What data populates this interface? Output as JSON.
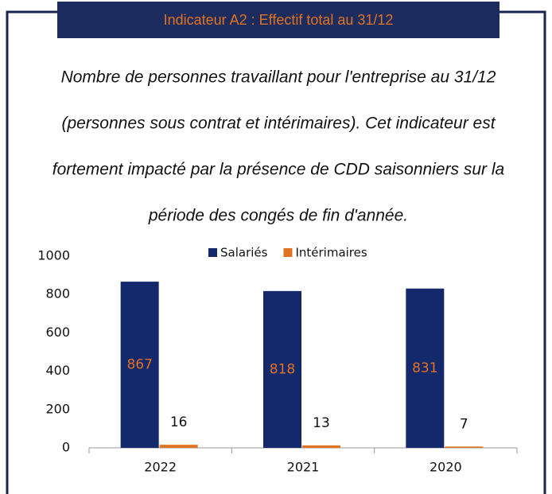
{
  "chart_data": {
    "type": "bar",
    "title": "Indicateur A2 : Effectif total au 31/12",
    "description": [
      "Nombre de personnes travaillant pour l'entreprise au 31/12",
      "(personnes sous contrat et intérimaires).  Cet indicateur est",
      "fortement impacté par la présence de CDD saisonniers sur la",
      "période des congés de fin d'année."
    ],
    "categories": [
      "2022",
      "2021",
      "2020"
    ],
    "series": [
      {
        "name": "Salariés",
        "color": "#13296b",
        "values": [
          867,
          818,
          831
        ]
      },
      {
        "name": "Intérimaires",
        "color": "#e07223",
        "values": [
          16,
          13,
          7
        ]
      }
    ],
    "ylim": [
      0,
      1000
    ],
    "yticks": [
      0,
      200,
      400,
      600,
      800,
      1000
    ],
    "grid": false,
    "legend": "top"
  }
}
